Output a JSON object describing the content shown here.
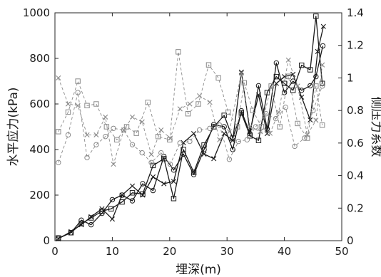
{
  "chart_data": {
    "type": "line",
    "title": "",
    "xlabel": "埋深(m)",
    "ylabel_left": "水平应力(kPa)",
    "ylabel_right": "侧压力系数",
    "xlim": [
      0,
      50
    ],
    "ylim_left": [
      0,
      1000
    ],
    "ylim_right": [
      0,
      1.4
    ],
    "xticks": [
      "0",
      "10",
      "20",
      "30",
      "40",
      "50"
    ],
    "yticks_left": [
      "0",
      "200",
      "400",
      "600",
      "800",
      "1000"
    ],
    "yticks_right": [
      "0",
      "0.2",
      "0.4",
      "0.6",
      "0.8",
      "1",
      "1.2",
      "1.4"
    ],
    "grid": false,
    "legend": "none",
    "series": [
      {
        "axis": "left",
        "style": "solid",
        "marker": "square",
        "color": "#1a1a1a",
        "points": [
          [
            0.6,
            12
          ],
          [
            2.8,
            35
          ],
          [
            4.6,
            75
          ],
          [
            6.3,
            100
          ],
          [
            8.2,
            130
          ],
          [
            9.8,
            140
          ],
          [
            11.7,
            170
          ],
          [
            13.5,
            210
          ],
          [
            15.3,
            205
          ],
          [
            17.1,
            330
          ],
          [
            19.0,
            360
          ],
          [
            20.7,
            185
          ],
          [
            22.4,
            400
          ],
          [
            24.2,
            300
          ],
          [
            26.0,
            420
          ],
          [
            27.7,
            500
          ],
          [
            29.5,
            550
          ],
          [
            31.0,
            450
          ],
          [
            32.5,
            560
          ],
          [
            34.0,
            460
          ],
          [
            35.5,
            440
          ],
          [
            37.0,
            650
          ],
          [
            38.6,
            720
          ],
          [
            40.0,
            690
          ],
          [
            41.5,
            660
          ],
          [
            43.0,
            770
          ],
          [
            44.5,
            750
          ],
          [
            45.5,
            985
          ],
          [
            46.6,
            690
          ]
        ]
      },
      {
        "axis": "left",
        "style": "solid",
        "marker": "x",
        "color": "#1a1a1a",
        "points": [
          [
            0.6,
            8
          ],
          [
            2.8,
            40
          ],
          [
            4.6,
            70
          ],
          [
            6.3,
            105
          ],
          [
            8.2,
            140
          ],
          [
            10.0,
            95
          ],
          [
            11.7,
            200
          ],
          [
            13.5,
            240
          ],
          [
            15.3,
            200
          ],
          [
            17.1,
            280
          ],
          [
            19.0,
            250
          ],
          [
            20.7,
            260
          ],
          [
            22.4,
            430
          ],
          [
            24.2,
            470
          ],
          [
            26.0,
            380
          ],
          [
            27.7,
            360
          ],
          [
            29.5,
            470
          ],
          [
            31.0,
            440
          ],
          [
            32.5,
            740
          ],
          [
            34.0,
            480
          ],
          [
            35.5,
            640
          ],
          [
            37.0,
            470
          ],
          [
            38.6,
            690
          ],
          [
            40.0,
            720
          ],
          [
            41.5,
            730
          ],
          [
            43.0,
            630
          ],
          [
            44.5,
            530
          ],
          [
            45.8,
            830
          ],
          [
            46.8,
            940
          ]
        ]
      },
      {
        "axis": "left",
        "style": "solid",
        "marker": "circle",
        "color": "#1a1a1a",
        "points": [
          [
            0.6,
            10
          ],
          [
            2.8,
            35
          ],
          [
            4.6,
            90
          ],
          [
            6.3,
            70
          ],
          [
            8.2,
            120
          ],
          [
            10.0,
            180
          ],
          [
            11.7,
            200
          ],
          [
            13.5,
            175
          ],
          [
            15.3,
            250
          ],
          [
            17.1,
            220
          ],
          [
            19.0,
            370
          ],
          [
            20.7,
            310
          ],
          [
            22.4,
            380
          ],
          [
            24.2,
            290
          ],
          [
            26.0,
            400
          ],
          [
            27.7,
            510
          ],
          [
            29.5,
            500
          ],
          [
            31.0,
            400
          ],
          [
            32.5,
            570
          ],
          [
            34.0,
            470
          ],
          [
            35.5,
            680
          ],
          [
            37.0,
            490
          ],
          [
            38.6,
            780
          ],
          [
            40.0,
            650
          ],
          [
            41.5,
            700
          ],
          [
            43.0,
            660
          ],
          [
            44.5,
            680
          ],
          [
            45.5,
            720
          ],
          [
            46.7,
            855
          ]
        ]
      },
      {
        "axis": "right",
        "style": "dashed",
        "marker": "square",
        "color": "#8a8a8a",
        "points": [
          [
            0.6,
            0.67
          ],
          [
            2.3,
            0.79
          ],
          [
            4.0,
            0.98
          ],
          [
            5.6,
            0.83
          ],
          [
            7.2,
            0.84
          ],
          [
            9.0,
            0.7
          ],
          [
            10.8,
            0.62
          ],
          [
            12.5,
            0.7
          ],
          [
            14.2,
            0.66
          ],
          [
            16.2,
            0.85
          ],
          [
            18.0,
            0.64
          ],
          [
            20.0,
            0.62
          ],
          [
            21.5,
            1.16
          ],
          [
            23.2,
            0.78
          ],
          [
            25.0,
            0.84
          ],
          [
            26.8,
            1.08
          ],
          [
            28.5,
            1.0
          ],
          [
            30.2,
            0.79
          ],
          [
            31.8,
            0.7
          ],
          [
            33.0,
            0.97
          ],
          [
            34.5,
            0.8
          ],
          [
            36.0,
            0.7
          ],
          [
            37.7,
            0.95
          ],
          [
            39.2,
            0.7
          ],
          [
            40.7,
            1.01
          ],
          [
            42.3,
            0.72
          ],
          [
            44.0,
            0.63
          ],
          [
            45.5,
            0.95
          ],
          [
            46.6,
            0.71
          ]
        ]
      },
      {
        "axis": "right",
        "style": "dashed",
        "marker": "x",
        "color": "#8a8a8a",
        "points": [
          [
            0.6,
            1.0
          ],
          [
            2.3,
            0.84
          ],
          [
            4.0,
            0.83
          ],
          [
            5.6,
            0.65
          ],
          [
            7.2,
            0.65
          ],
          [
            8.8,
            0.76
          ],
          [
            10.2,
            0.47
          ],
          [
            12.0,
            0.68
          ],
          [
            13.5,
            0.76
          ],
          [
            15.2,
            0.73
          ],
          [
            16.8,
            0.53
          ],
          [
            18.5,
            0.68
          ],
          [
            20.1,
            0.63
          ],
          [
            21.8,
            0.81
          ],
          [
            23.5,
            0.84
          ],
          [
            25.2,
            0.89
          ],
          [
            27.0,
            0.85
          ],
          [
            28.7,
            0.62
          ],
          [
            30.4,
            0.67
          ],
          [
            32.5,
            1.03
          ],
          [
            34.0,
            0.7
          ],
          [
            35.8,
            0.67
          ],
          [
            37.5,
            0.66
          ],
          [
            39.0,
            0.79
          ],
          [
            40.7,
            1.11
          ],
          [
            42.3,
            0.95
          ],
          [
            44.0,
            0.65
          ],
          [
            45.5,
            0.74
          ],
          [
            46.6,
            1.08
          ]
        ]
      },
      {
        "axis": "right",
        "style": "dashed",
        "marker": "circle",
        "color": "#8a8a8a",
        "points": [
          [
            0.6,
            0.48
          ],
          [
            2.3,
            0.65
          ],
          [
            4.0,
            0.91
          ],
          [
            5.6,
            0.51
          ],
          [
            7.2,
            0.59
          ],
          [
            8.8,
            0.64
          ],
          [
            10.2,
            0.69
          ],
          [
            12.0,
            0.68
          ],
          [
            13.5,
            0.59
          ],
          [
            15.2,
            0.54
          ],
          [
            16.8,
            0.48
          ],
          [
            18.5,
            0.54
          ],
          [
            20.1,
            0.47
          ],
          [
            21.8,
            0.6
          ],
          [
            23.5,
            0.61
          ],
          [
            25.2,
            0.68
          ],
          [
            27.0,
            0.69
          ],
          [
            28.7,
            0.71
          ],
          [
            30.4,
            0.5
          ],
          [
            32.0,
            0.61
          ],
          [
            33.5,
            0.62
          ],
          [
            35.0,
            0.7
          ],
          [
            36.8,
            0.78
          ],
          [
            38.5,
            0.75
          ],
          [
            40.2,
            0.82
          ],
          [
            41.8,
            0.58
          ],
          [
            43.5,
            0.63
          ],
          [
            45.0,
            0.8
          ],
          [
            46.6,
            0.95
          ]
        ]
      }
    ]
  }
}
